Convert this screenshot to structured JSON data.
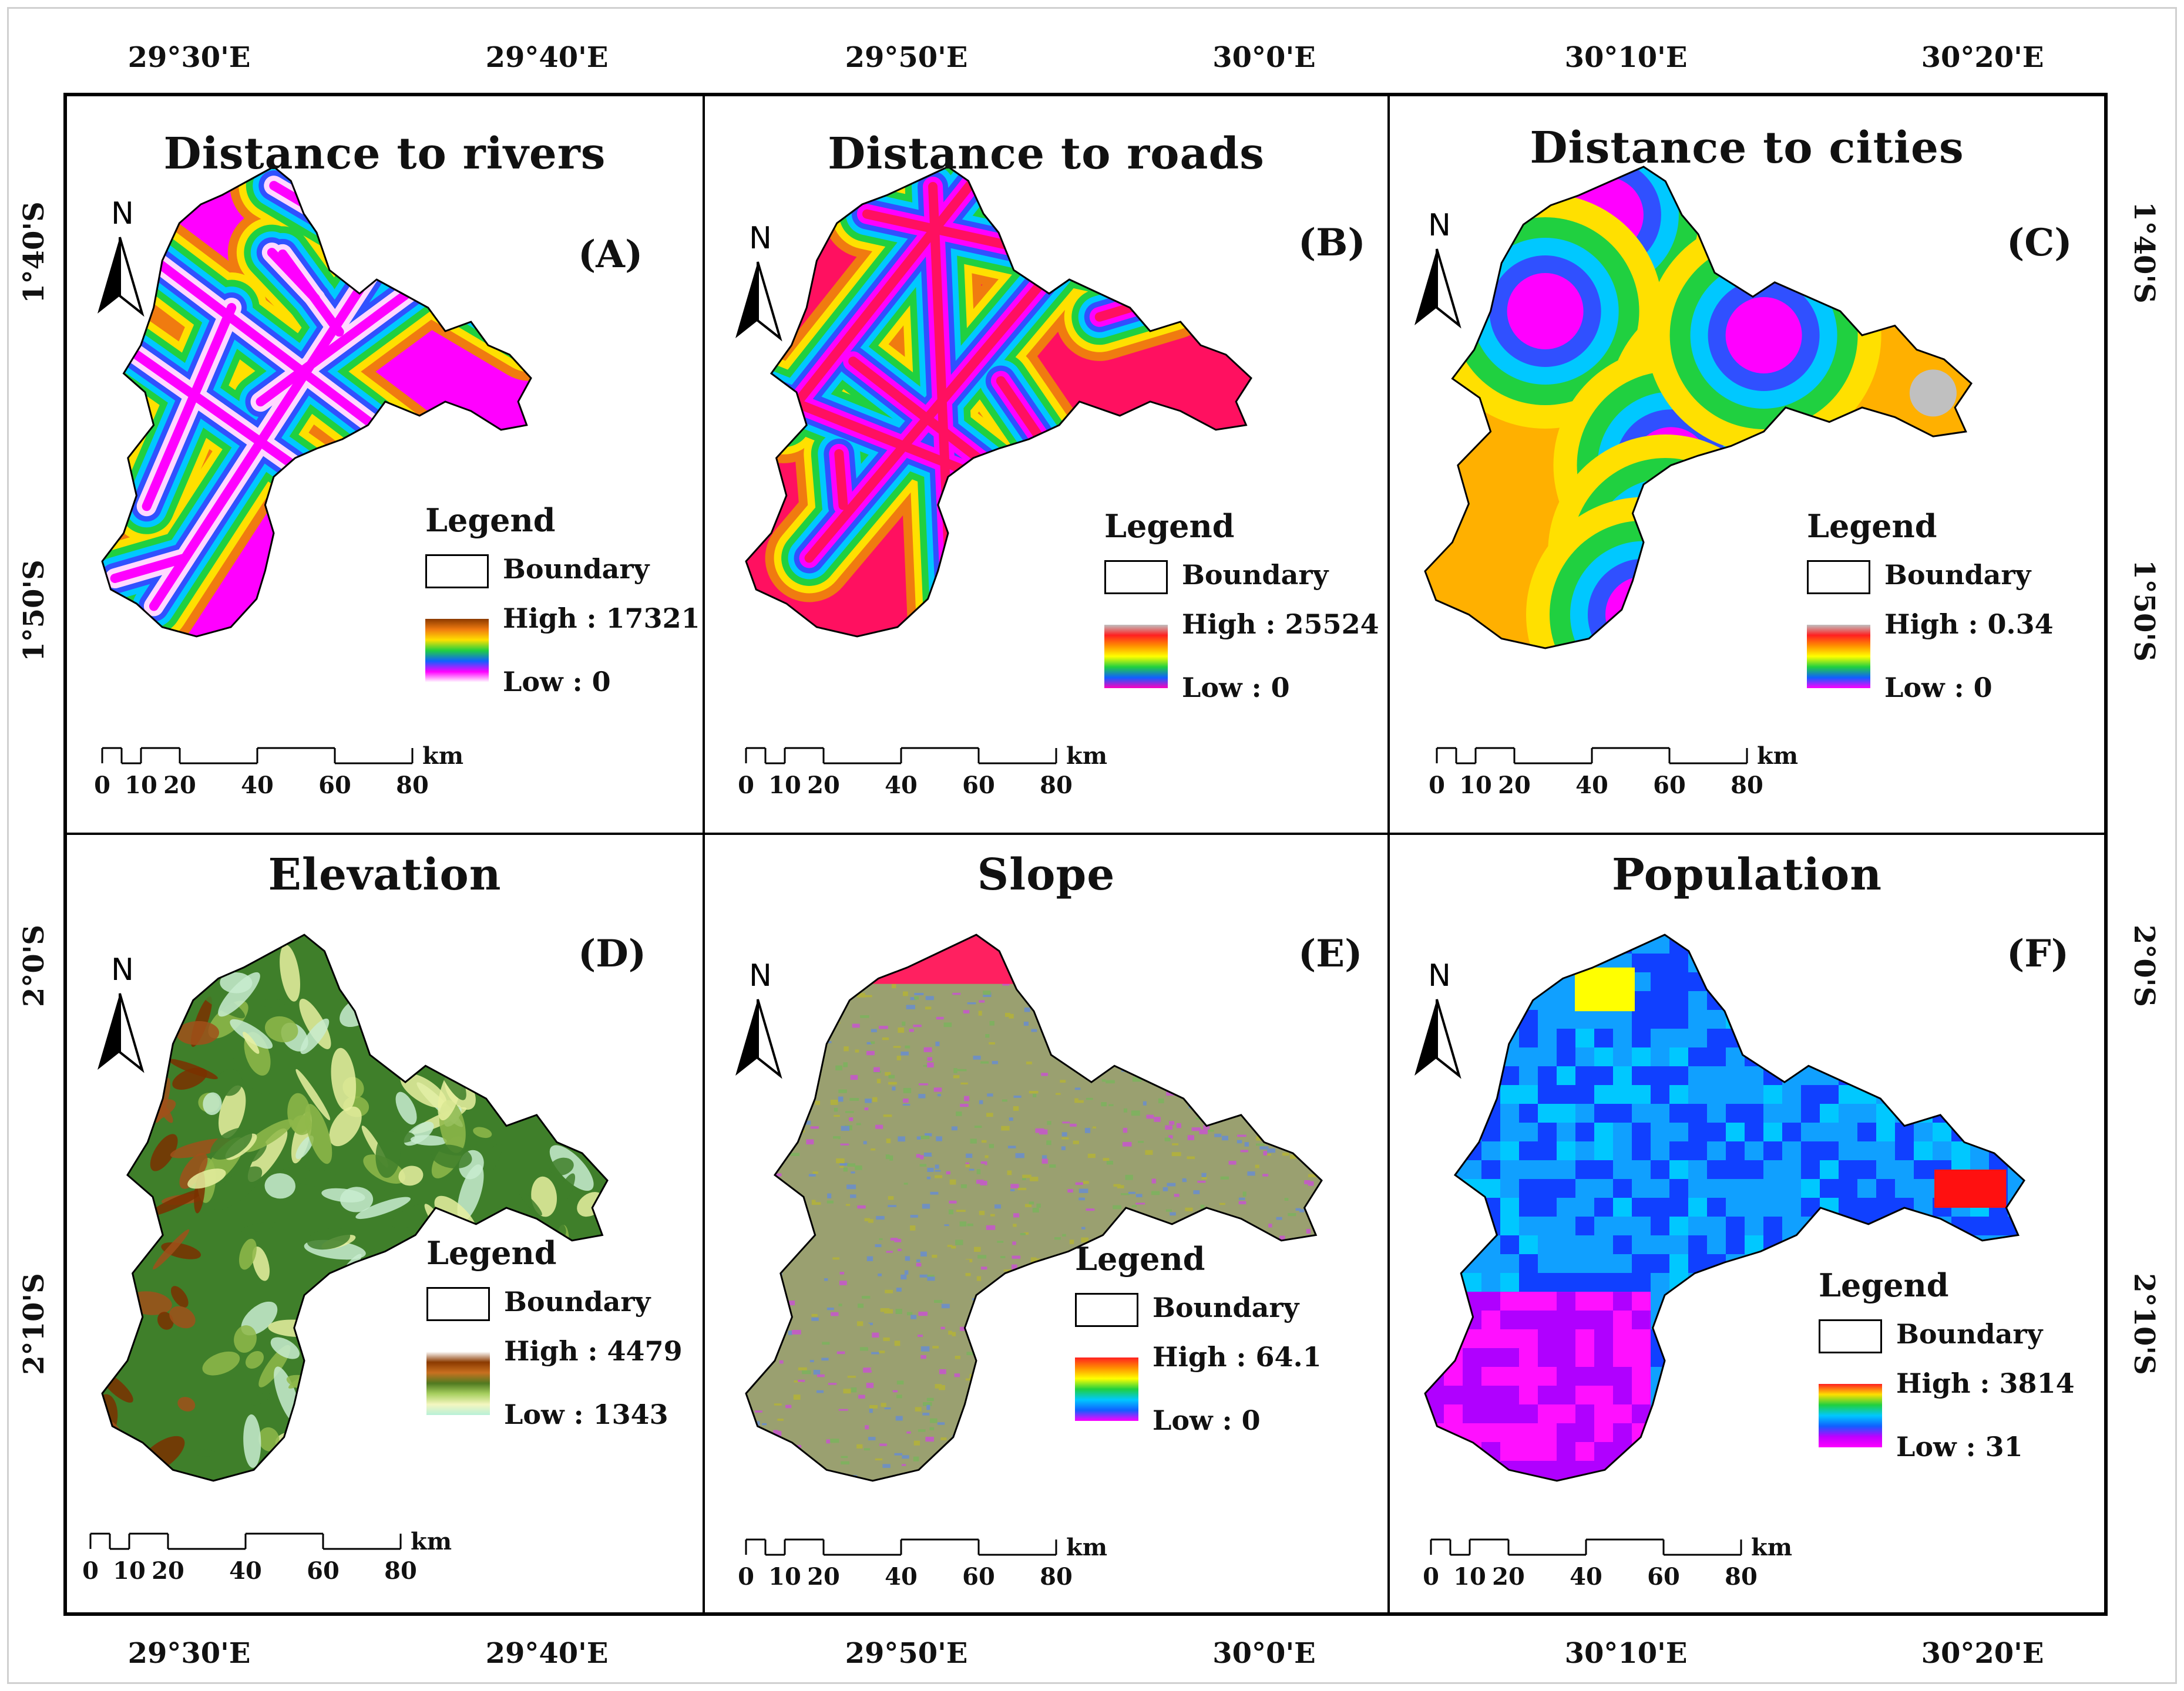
{
  "longitude_labels_top": [
    "29°30'E",
    "29°40'E",
    "29°50'E",
    "30°0'E",
    "30°10'E",
    "30°20'E"
  ],
  "longitude_labels_bottom": [
    "29°30'E",
    "29°40'E",
    "29°50'E",
    "30°0'E",
    "30°10'E",
    "30°20'E"
  ],
  "latitude_labels_left": [
    "1°40'S",
    "1°50'S",
    "2°0'S",
    "2°10'S"
  ],
  "latitude_labels_right": [
    "1°40'S",
    "1°50'S",
    "2°0'S",
    "2°10'S"
  ],
  "panels": [
    {
      "title": "Distance to rivers",
      "letter": "(A)",
      "north": "N",
      "legend": "Legend",
      "boundary": "Boundary",
      "high": "High : 17321",
      "low": "Low : 0",
      "ramp": [
        "#8b3a00",
        "#f07b10",
        "#ffe000",
        "#20d040",
        "#1060ff",
        "#ff00ff",
        "#ffffff"
      ],
      "map_colors": [
        "#ff00ff",
        "#ffd8ff",
        "#3050ff",
        "#00c8ff",
        "#20d040",
        "#ffe000",
        "#f07b10"
      ]
    },
    {
      "title": "Distance to roads",
      "letter": "(B)",
      "north": "N",
      "legend": "Legend",
      "boundary": "Boundary",
      "high": "High : 25524",
      "low": "Low : 0",
      "ramp": [
        "#c0c0c0",
        "#ff2020",
        "#ff9000",
        "#ffff00",
        "#20d040",
        "#1060ff",
        "#ff00c0"
      ],
      "map_colors": [
        "#ff1060",
        "#ff00ff",
        "#3050ff",
        "#00c8ff",
        "#20d040",
        "#ffe000",
        "#f07b10"
      ]
    },
    {
      "title": "Distance to cities",
      "letter": "(C)",
      "north": "N",
      "legend": "Legend",
      "boundary": "Boundary",
      "high": "High : 0.34",
      "low": "Low : 0",
      "ramp": [
        "#c0c0c0",
        "#ff2020",
        "#ff9000",
        "#ffff00",
        "#20d040",
        "#1060ff",
        "#ff00ff"
      ],
      "map_colors": [
        "#ffb000",
        "#ffe000",
        "#20d040",
        "#00c8ff",
        "#3050ff",
        "#ff00ff",
        "#c0c0c0"
      ]
    },
    {
      "title": "Elevation",
      "letter": "(D)",
      "north": "N",
      "legend": "Legend",
      "boundary": "Boundary",
      "high": "High : 4479",
      "low": "Low : 1343",
      "ramp": [
        "#ffffff",
        "#8b3a00",
        "#c87020",
        "#507a20",
        "#a8d060",
        "#f4f6c0",
        "#b8f0d8"
      ],
      "map_colors": [
        "#3f7f2a",
        "#8fb84a",
        "#e8f0a0",
        "#c8ecd0",
        "#a0501a",
        "#7a3000",
        "#ffffff"
      ]
    },
    {
      "title": "Slope",
      "letter": "(E)",
      "north": "N",
      "legend": "Legend",
      "boundary": "Boundary",
      "high": "High : 64.1",
      "low": "Low : 0",
      "ramp": [
        "#ff2020",
        "#ff9000",
        "#ffff00",
        "#20d040",
        "#00c8ff",
        "#1060ff",
        "#ff00ff"
      ],
      "map_colors": [
        "#9aa070",
        "#b0b040",
        "#7090c0",
        "#c060c0",
        "#80b060",
        "#ff2060",
        "#ff00ff"
      ]
    },
    {
      "title": "Population",
      "letter": "(F)",
      "north": "N",
      "legend": "Legend",
      "boundary": "Boundary",
      "high": "High : 3814",
      "low": "Low : 31",
      "ramp": [
        "#ff2020",
        "#ffe000",
        "#20d040",
        "#00c8ff",
        "#1060ff",
        "#c000ff",
        "#ff00ff"
      ],
      "map_colors": [
        "#1040ff",
        "#10a0ff",
        "#00c8ff",
        "#b000ff",
        "#ff10ff",
        "#ffff00",
        "#ff1010"
      ]
    }
  ],
  "scale_bar": {
    "ticks": [
      "0",
      "10",
      "20",
      "40",
      "60",
      "80"
    ],
    "unit": "km"
  }
}
